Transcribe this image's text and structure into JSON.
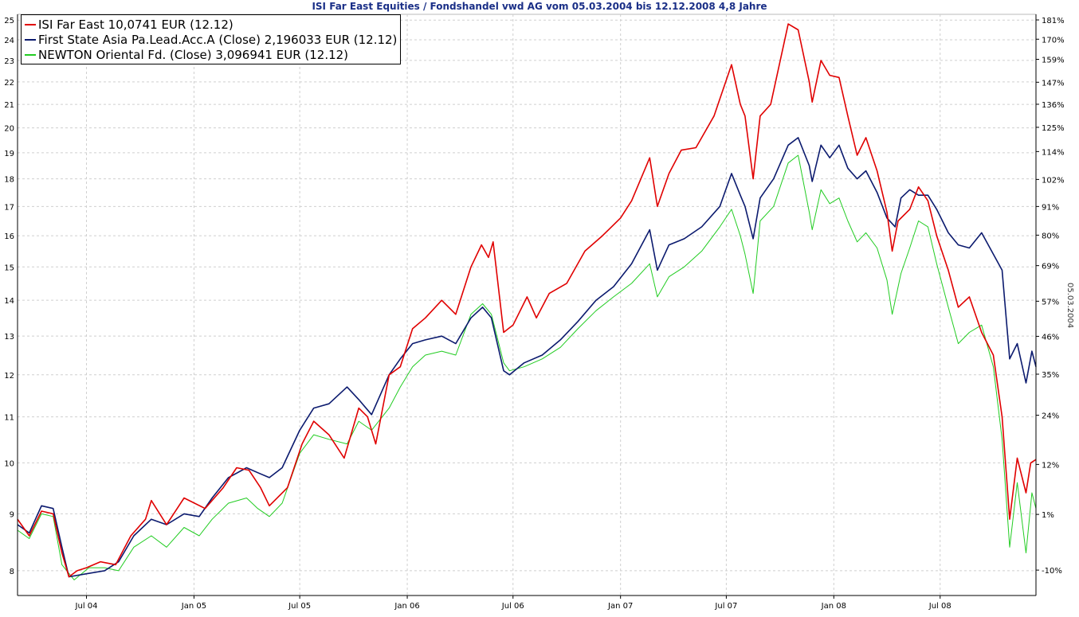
{
  "chart_data": {
    "type": "line",
    "title": "ISI Far East Equities / Fondshandel vwd AG vom 05.03.2004 bis 12.12.2008 4,8 Jahre",
    "date_stamp": "05.03.2004",
    "y_scale": "log",
    "ylim": [
      7.6,
      25.3
    ],
    "x_ticks": [
      "Jul 04",
      "Jan 05",
      "Jul 05",
      "Jan 06",
      "Jul 06",
      "Jan 07",
      "Jul 07",
      "Jan 08",
      "Jul 08"
    ],
    "y_ticks_left": [
      "25",
      "24",
      "23",
      "22",
      "21",
      "20",
      "19",
      "18",
      "17",
      "16",
      "15",
      "14",
      "13",
      "12",
      "11",
      "10",
      "9",
      "8"
    ],
    "y_ticks_right": [
      "181%",
      "170%",
      "159%",
      "147%",
      "136%",
      "125%",
      "114%",
      "102%",
      "91%",
      "80%",
      "69%",
      "57%",
      "46%",
      "35%",
      "24%",
      "12%",
      "1%",
      "-10%"
    ],
    "y_right_values": [
      181,
      170,
      159,
      147,
      136,
      125,
      114,
      102,
      91,
      80,
      69,
      57,
      46,
      35,
      24,
      12,
      1,
      -10
    ],
    "y_right_base": 8.9,
    "grid": true,
    "legend_position": "top-left",
    "x_domain": [
      "2004-03-05",
      "2008-12-12"
    ],
    "series": [
      {
        "name": "ISI Far East 10,0741 EUR (12.12)",
        "color": "#e00000",
        "points": [
          [
            "2004-03-05",
            8.9
          ],
          [
            "2004-03-25",
            8.6
          ],
          [
            "2004-04-15",
            9.05
          ],
          [
            "2004-05-05",
            9.0
          ],
          [
            "2004-05-20",
            8.3
          ],
          [
            "2004-06-01",
            7.9
          ],
          [
            "2004-06-15",
            8.0
          ],
          [
            "2004-07-01",
            8.05
          ],
          [
            "2004-07-25",
            8.15
          ],
          [
            "2004-08-20",
            8.1
          ],
          [
            "2004-09-15",
            8.6
          ],
          [
            "2004-10-10",
            8.9
          ],
          [
            "2004-10-20",
            9.25
          ],
          [
            "2004-11-15",
            8.8
          ],
          [
            "2004-12-15",
            9.3
          ],
          [
            "2005-01-20",
            9.1
          ],
          [
            "2005-02-20",
            9.5
          ],
          [
            "2005-03-15",
            9.9
          ],
          [
            "2005-04-05",
            9.85
          ],
          [
            "2005-04-25",
            9.5
          ],
          [
            "2005-05-10",
            9.15
          ],
          [
            "2005-06-10",
            9.5
          ],
          [
            "2005-07-05",
            10.4
          ],
          [
            "2005-07-25",
            10.9
          ],
          [
            "2005-08-20",
            10.6
          ],
          [
            "2005-09-15",
            10.1
          ],
          [
            "2005-10-10",
            11.2
          ],
          [
            "2005-10-25",
            11.0
          ],
          [
            "2005-11-08",
            10.4
          ],
          [
            "2005-12-01",
            12.0
          ],
          [
            "2005-12-20",
            12.2
          ],
          [
            "2006-01-10",
            13.2
          ],
          [
            "2006-02-01",
            13.5
          ],
          [
            "2006-03-01",
            14.0
          ],
          [
            "2006-03-25",
            13.6
          ],
          [
            "2006-04-20",
            15.0
          ],
          [
            "2006-05-08",
            15.7
          ],
          [
            "2006-05-20",
            15.3
          ],
          [
            "2006-05-28",
            15.8
          ],
          [
            "2006-06-15",
            13.1
          ],
          [
            "2006-07-01",
            13.3
          ],
          [
            "2006-07-25",
            14.1
          ],
          [
            "2006-08-10",
            13.5
          ],
          [
            "2006-09-01",
            14.2
          ],
          [
            "2006-10-01",
            14.5
          ],
          [
            "2006-11-01",
            15.5
          ],
          [
            "2006-12-01",
            16.0
          ],
          [
            "2007-01-01",
            16.6
          ],
          [
            "2007-01-20",
            17.2
          ],
          [
            "2007-02-20",
            18.8
          ],
          [
            "2007-03-05",
            17.0
          ],
          [
            "2007-03-25",
            18.2
          ],
          [
            "2007-04-15",
            19.1
          ],
          [
            "2007-05-10",
            19.2
          ],
          [
            "2007-06-10",
            20.5
          ],
          [
            "2007-07-10",
            22.8
          ],
          [
            "2007-07-25",
            21.0
          ],
          [
            "2007-08-02",
            20.5
          ],
          [
            "2007-08-16",
            18.0
          ],
          [
            "2007-08-28",
            20.5
          ],
          [
            "2007-09-15",
            21.0
          ],
          [
            "2007-10-15",
            24.8
          ],
          [
            "2007-11-01",
            24.5
          ],
          [
            "2007-11-20",
            22.0
          ],
          [
            "2007-11-25",
            21.1
          ],
          [
            "2007-12-10",
            23.0
          ],
          [
            "2007-12-25",
            22.3
          ],
          [
            "2008-01-10",
            22.2
          ],
          [
            "2008-01-25",
            20.5
          ],
          [
            "2008-02-10",
            18.9
          ],
          [
            "2008-02-25",
            19.6
          ],
          [
            "2008-03-15",
            18.3
          ],
          [
            "2008-04-01",
            16.8
          ],
          [
            "2008-04-10",
            15.5
          ],
          [
            "2008-04-20",
            16.5
          ],
          [
            "2008-05-10",
            16.9
          ],
          [
            "2008-05-25",
            17.7
          ],
          [
            "2008-06-10",
            17.2
          ],
          [
            "2008-06-25",
            16.0
          ],
          [
            "2008-07-15",
            14.9
          ],
          [
            "2008-08-01",
            13.8
          ],
          [
            "2008-08-20",
            14.1
          ],
          [
            "2008-09-10",
            13.1
          ],
          [
            "2008-09-30",
            12.5
          ],
          [
            "2008-10-15",
            11.0
          ],
          [
            "2008-10-28",
            8.9
          ],
          [
            "2008-11-10",
            10.1
          ],
          [
            "2008-11-25",
            9.4
          ],
          [
            "2008-12-03",
            10.0
          ],
          [
            "2008-12-12",
            10.07
          ]
        ]
      },
      {
        "name": "First State Asia Pa.Lead.Acc.A (Close) 2,196033 EUR (12.12)",
        "color": "#0b1a6e",
        "points": [
          [
            "2004-03-05",
            8.8
          ],
          [
            "2004-03-25",
            8.65
          ],
          [
            "2004-04-15",
            9.15
          ],
          [
            "2004-05-05",
            9.1
          ],
          [
            "2004-05-20",
            8.4
          ],
          [
            "2004-06-01",
            7.9
          ],
          [
            "2004-07-01",
            7.95
          ],
          [
            "2004-08-01",
            8.0
          ],
          [
            "2004-08-25",
            8.15
          ],
          [
            "2004-09-20",
            8.6
          ],
          [
            "2004-10-20",
            8.9
          ],
          [
            "2004-11-15",
            8.8
          ],
          [
            "2004-12-15",
            9.0
          ],
          [
            "2005-01-10",
            8.95
          ],
          [
            "2005-02-01",
            9.3
          ],
          [
            "2005-03-01",
            9.7
          ],
          [
            "2005-04-01",
            9.9
          ],
          [
            "2005-04-20",
            9.8
          ],
          [
            "2005-05-10",
            9.7
          ],
          [
            "2005-06-01",
            9.9
          ],
          [
            "2005-07-01",
            10.7
          ],
          [
            "2005-07-25",
            11.2
          ],
          [
            "2005-08-20",
            11.3
          ],
          [
            "2005-09-20",
            11.7
          ],
          [
            "2005-10-10",
            11.4
          ],
          [
            "2005-11-01",
            11.05
          ],
          [
            "2005-12-01",
            12.0
          ],
          [
            "2005-12-20",
            12.4
          ],
          [
            "2006-01-10",
            12.8
          ],
          [
            "2006-02-01",
            12.9
          ],
          [
            "2006-03-01",
            13.0
          ],
          [
            "2006-03-25",
            12.8
          ],
          [
            "2006-04-20",
            13.5
          ],
          [
            "2006-05-10",
            13.8
          ],
          [
            "2006-05-25",
            13.5
          ],
          [
            "2006-06-15",
            12.1
          ],
          [
            "2006-06-25",
            12.0
          ],
          [
            "2006-07-20",
            12.3
          ],
          [
            "2006-08-20",
            12.5
          ],
          [
            "2006-09-20",
            12.9
          ],
          [
            "2006-10-20",
            13.4
          ],
          [
            "2006-11-20",
            14.0
          ],
          [
            "2006-12-20",
            14.4
          ],
          [
            "2007-01-20",
            15.1
          ],
          [
            "2007-02-20",
            16.2
          ],
          [
            "2007-03-05",
            14.9
          ],
          [
            "2007-03-25",
            15.7
          ],
          [
            "2007-04-20",
            15.9
          ],
          [
            "2007-05-20",
            16.3
          ],
          [
            "2007-06-20",
            17.0
          ],
          [
            "2007-07-10",
            18.2
          ],
          [
            "2007-07-25",
            17.4
          ],
          [
            "2007-08-02",
            17.0
          ],
          [
            "2007-08-16",
            15.9
          ],
          [
            "2007-08-28",
            17.3
          ],
          [
            "2007-09-20",
            18.0
          ],
          [
            "2007-10-15",
            19.3
          ],
          [
            "2007-11-01",
            19.6
          ],
          [
            "2007-11-20",
            18.5
          ],
          [
            "2007-11-25",
            17.9
          ],
          [
            "2007-12-10",
            19.3
          ],
          [
            "2007-12-25",
            18.8
          ],
          [
            "2008-01-10",
            19.3
          ],
          [
            "2008-01-25",
            18.4
          ],
          [
            "2008-02-10",
            18.0
          ],
          [
            "2008-02-25",
            18.3
          ],
          [
            "2008-03-15",
            17.5
          ],
          [
            "2008-04-01",
            16.6
          ],
          [
            "2008-04-15",
            16.3
          ],
          [
            "2008-04-25",
            17.3
          ],
          [
            "2008-05-10",
            17.6
          ],
          [
            "2008-05-25",
            17.4
          ],
          [
            "2008-06-10",
            17.4
          ],
          [
            "2008-06-25",
            16.9
          ],
          [
            "2008-07-15",
            16.1
          ],
          [
            "2008-08-01",
            15.7
          ],
          [
            "2008-08-20",
            15.6
          ],
          [
            "2008-09-10",
            16.1
          ],
          [
            "2008-09-30",
            15.4
          ],
          [
            "2008-10-15",
            14.9
          ],
          [
            "2008-10-28",
            12.4
          ],
          [
            "2008-11-10",
            12.8
          ],
          [
            "2008-11-25",
            11.8
          ],
          [
            "2008-12-05",
            12.6
          ],
          [
            "2008-12-12",
            12.2
          ]
        ]
      },
      {
        "name": "NEWTON Oriental Fd. (Close) 3,096941 EUR (12.12)",
        "color": "#22cc22",
        "points": [
          [
            "2004-03-05",
            8.7
          ],
          [
            "2004-03-25",
            8.55
          ],
          [
            "2004-04-15",
            9.0
          ],
          [
            "2004-05-05",
            8.95
          ],
          [
            "2004-05-20",
            8.1
          ],
          [
            "2004-06-10",
            7.85
          ],
          [
            "2004-07-05",
            8.05
          ],
          [
            "2004-08-01",
            8.05
          ],
          [
            "2004-08-25",
            8.0
          ],
          [
            "2004-09-20",
            8.4
          ],
          [
            "2004-10-20",
            8.6
          ],
          [
            "2004-11-15",
            8.4
          ],
          [
            "2004-12-15",
            8.75
          ],
          [
            "2005-01-10",
            8.6
          ],
          [
            "2005-02-01",
            8.9
          ],
          [
            "2005-03-01",
            9.2
          ],
          [
            "2005-04-01",
            9.3
          ],
          [
            "2005-04-20",
            9.1
          ],
          [
            "2005-05-10",
            8.95
          ],
          [
            "2005-06-01",
            9.2
          ],
          [
            "2005-07-01",
            10.2
          ],
          [
            "2005-07-25",
            10.6
          ],
          [
            "2005-08-20",
            10.5
          ],
          [
            "2005-09-20",
            10.4
          ],
          [
            "2005-10-10",
            10.9
          ],
          [
            "2005-11-01",
            10.7
          ],
          [
            "2005-12-01",
            11.2
          ],
          [
            "2005-12-20",
            11.7
          ],
          [
            "2006-01-10",
            12.2
          ],
          [
            "2006-02-01",
            12.5
          ],
          [
            "2006-03-01",
            12.6
          ],
          [
            "2006-03-25",
            12.5
          ],
          [
            "2006-04-20",
            13.6
          ],
          [
            "2006-05-10",
            13.9
          ],
          [
            "2006-05-25",
            13.6
          ],
          [
            "2006-06-15",
            12.3
          ],
          [
            "2006-06-25",
            12.1
          ],
          [
            "2006-07-20",
            12.2
          ],
          [
            "2006-08-20",
            12.4
          ],
          [
            "2006-09-20",
            12.7
          ],
          [
            "2006-10-20",
            13.2
          ],
          [
            "2006-11-20",
            13.7
          ],
          [
            "2006-12-20",
            14.1
          ],
          [
            "2007-01-20",
            14.5
          ],
          [
            "2007-02-20",
            15.1
          ],
          [
            "2007-03-05",
            14.1
          ],
          [
            "2007-03-25",
            14.7
          ],
          [
            "2007-04-20",
            15.0
          ],
          [
            "2007-05-20",
            15.5
          ],
          [
            "2007-06-20",
            16.3
          ],
          [
            "2007-07-10",
            16.9
          ],
          [
            "2007-07-25",
            16.0
          ],
          [
            "2007-08-02",
            15.4
          ],
          [
            "2007-08-16",
            14.2
          ],
          [
            "2007-08-28",
            16.5
          ],
          [
            "2007-09-20",
            17.0
          ],
          [
            "2007-10-15",
            18.6
          ],
          [
            "2007-11-01",
            18.9
          ],
          [
            "2007-11-20",
            16.8
          ],
          [
            "2007-11-25",
            16.2
          ],
          [
            "2007-12-10",
            17.6
          ],
          [
            "2007-12-25",
            17.1
          ],
          [
            "2008-01-10",
            17.3
          ],
          [
            "2008-01-25",
            16.5
          ],
          [
            "2008-02-10",
            15.8
          ],
          [
            "2008-02-25",
            16.1
          ],
          [
            "2008-03-15",
            15.6
          ],
          [
            "2008-04-01",
            14.6
          ],
          [
            "2008-04-10",
            13.6
          ],
          [
            "2008-04-25",
            14.8
          ],
          [
            "2008-05-10",
            15.6
          ],
          [
            "2008-05-25",
            16.5
          ],
          [
            "2008-06-10",
            16.3
          ],
          [
            "2008-06-25",
            15.1
          ],
          [
            "2008-07-15",
            13.8
          ],
          [
            "2008-08-01",
            12.8
          ],
          [
            "2008-08-20",
            13.1
          ],
          [
            "2008-09-10",
            13.3
          ],
          [
            "2008-09-30",
            12.2
          ],
          [
            "2008-10-15",
            10.5
          ],
          [
            "2008-10-28",
            8.4
          ],
          [
            "2008-11-10",
            9.6
          ],
          [
            "2008-11-25",
            8.3
          ],
          [
            "2008-12-05",
            9.4
          ],
          [
            "2008-12-12",
            9.1
          ]
        ]
      }
    ]
  }
}
